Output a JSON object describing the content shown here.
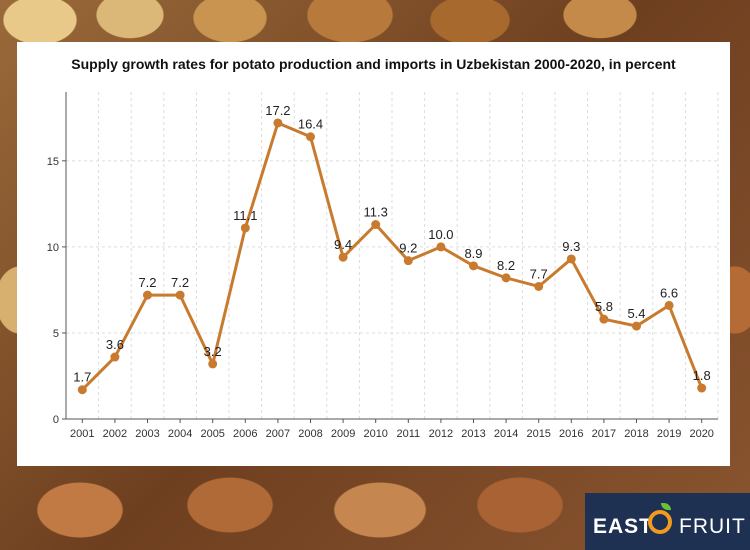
{
  "chart_data": {
    "type": "line",
    "title": "Supply growth rates for potato production and imports in Uzbekistan 2000-2020, in percent",
    "categories": [
      "2001",
      "2002",
      "2003",
      "2004",
      "2005",
      "2006",
      "2007",
      "2008",
      "2009",
      "2010",
      "2011",
      "2012",
      "2013",
      "2014",
      "2015",
      "2016",
      "2017",
      "2018",
      "2019",
      "2020"
    ],
    "series": [
      {
        "values": [
          1.7,
          3.6,
          7.2,
          7.2,
          3.2,
          11.1,
          17.2,
          16.4,
          9.4,
          11.3,
          9.2,
          10.0,
          8.9,
          8.2,
          7.7,
          9.3,
          5.8,
          5.4,
          6.6,
          1.8
        ]
      }
    ],
    "data_labels": [
      "1.7",
      "3.6",
      "7.2",
      "7.2",
      "3.2",
      "11.1",
      "17.2",
      "16.4",
      "9.4",
      "11.3",
      "9.2",
      "10.0",
      "8.9",
      "8.2",
      "7.7",
      "9.3",
      "5.8",
      "5.4",
      "6.6",
      "1.8"
    ],
    "y_ticks": [
      "0",
      "5",
      "10",
      "15"
    ],
    "ylim": [
      0,
      19
    ],
    "grid": true,
    "line_color": "#c87b2e",
    "xlabel": "",
    "ylabel": ""
  },
  "logo": {
    "left_text": "EAST",
    "right_text": "FRUIT",
    "ring_color": "#f29a1f",
    "leaf_color": "#6cbf3a",
    "bg_color": "#1f3152"
  }
}
